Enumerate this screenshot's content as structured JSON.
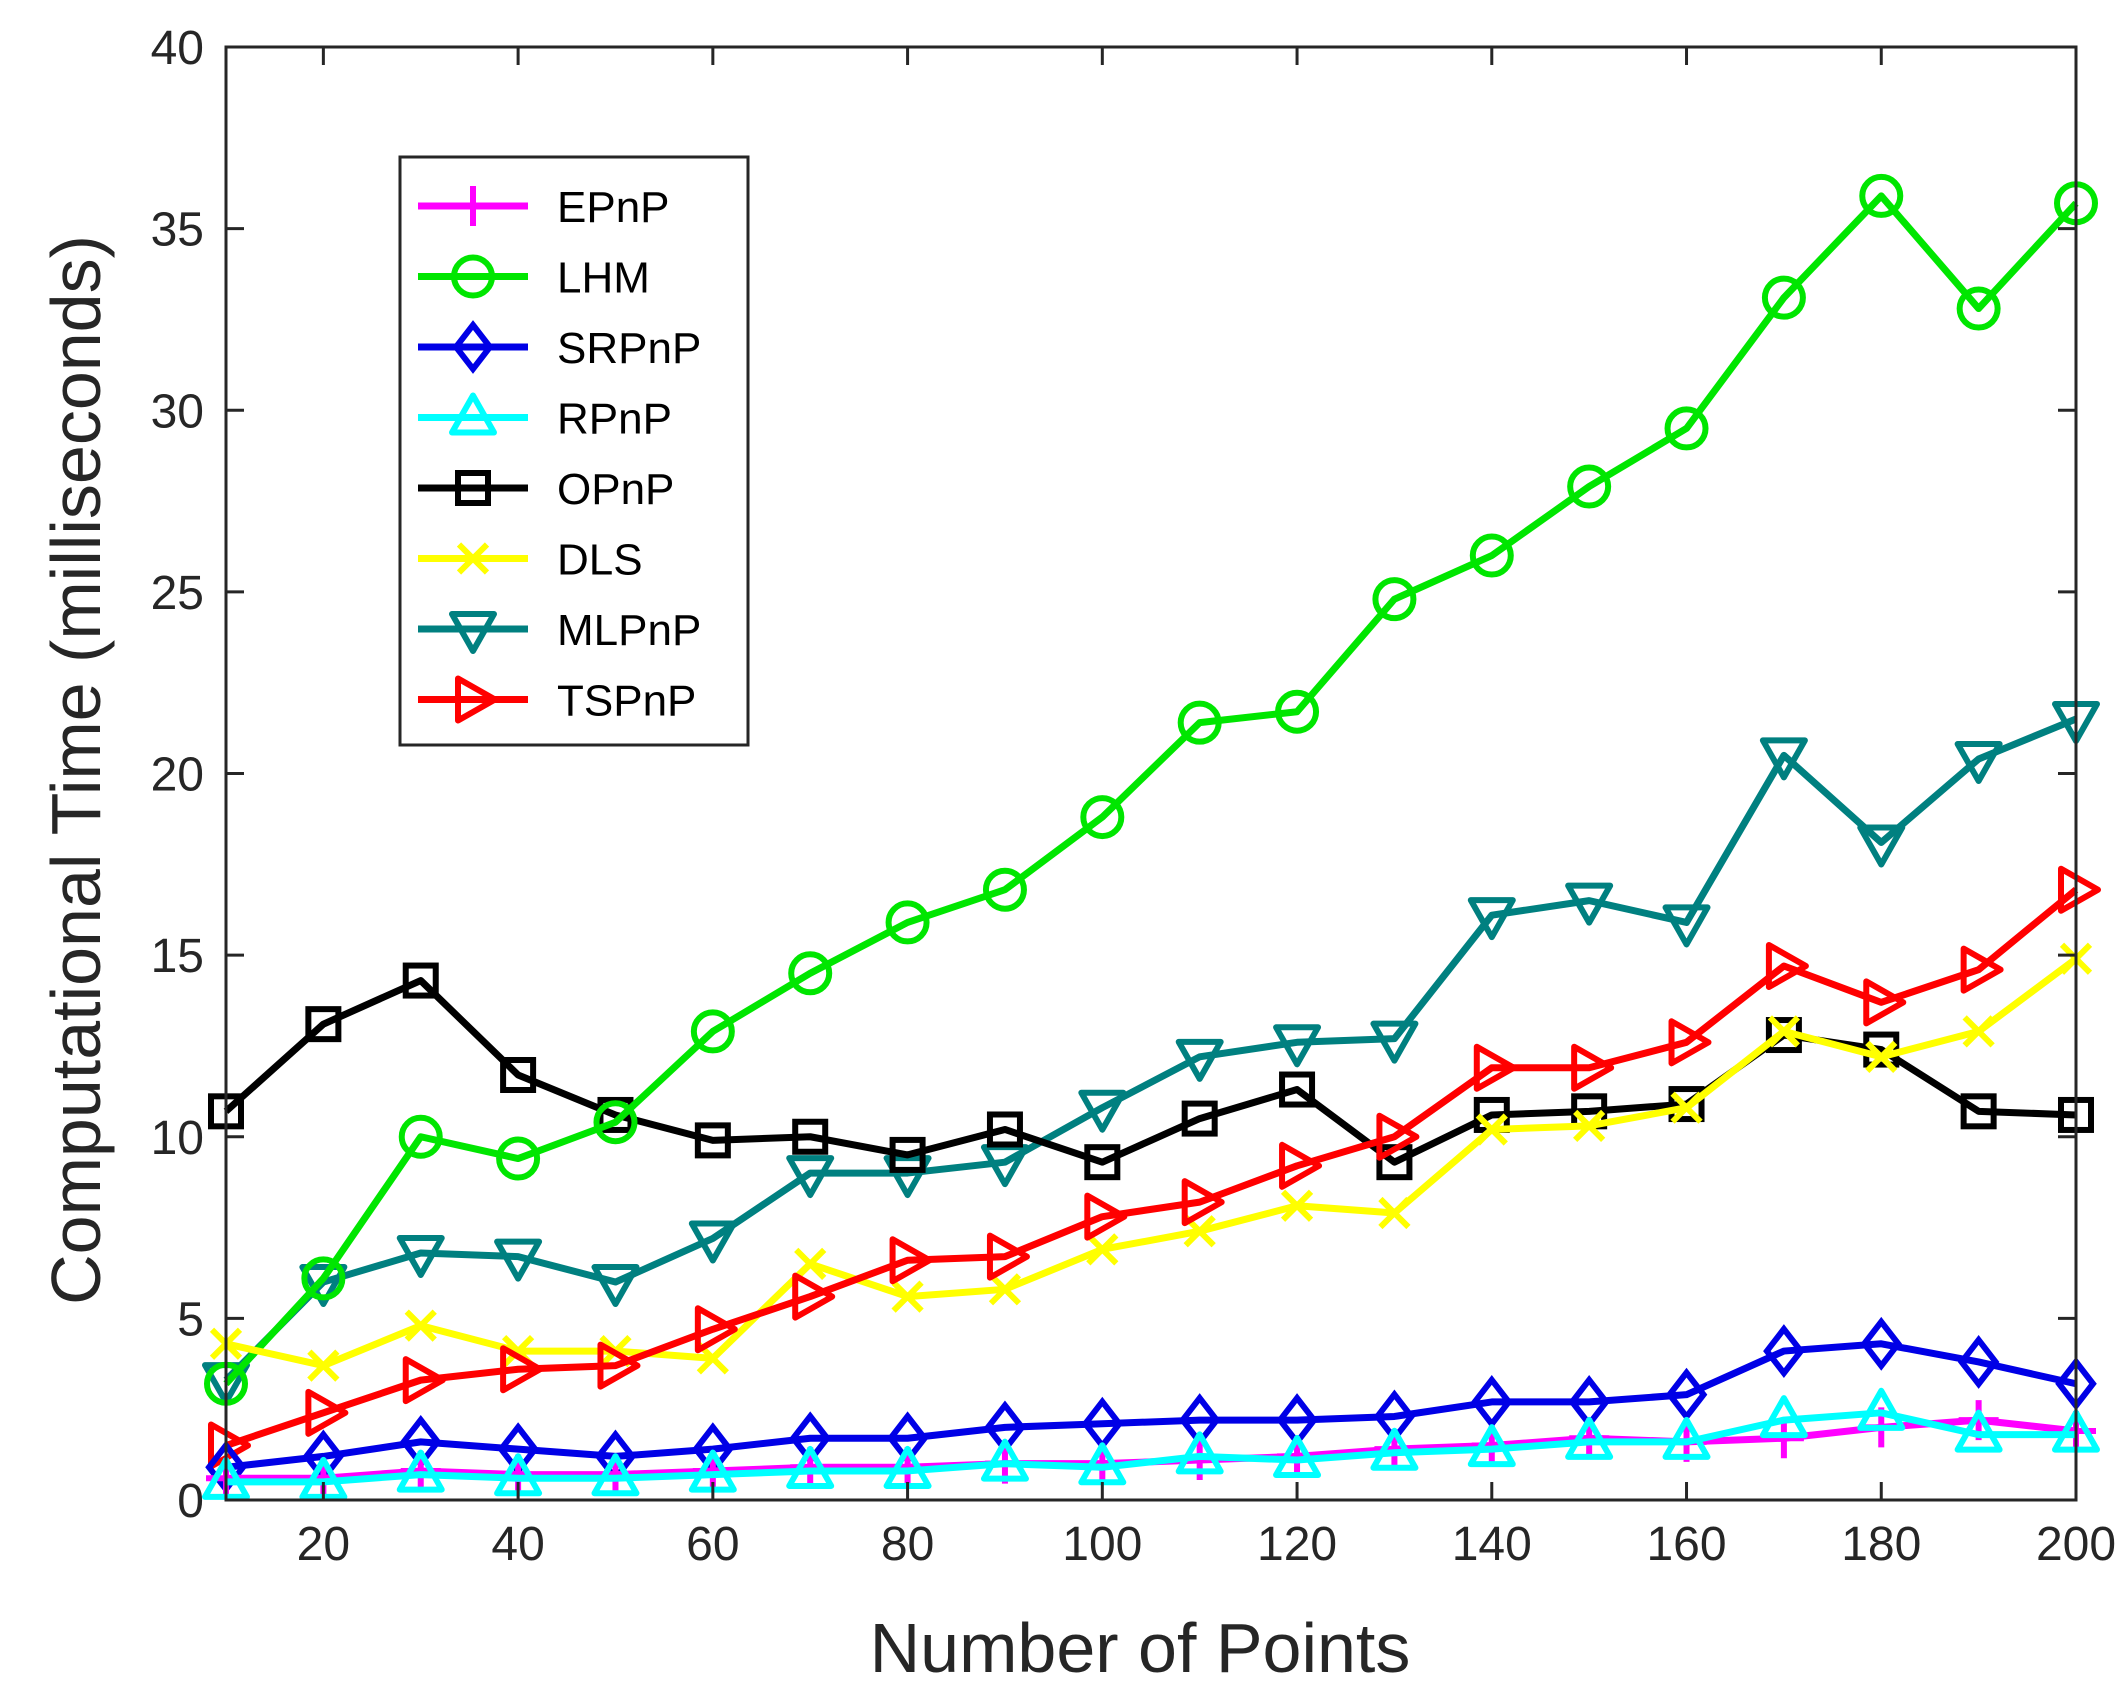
{
  "chart_data": {
    "type": "line",
    "title": "",
    "xlabel": "Number of Points",
    "ylabel": "Computational Time (milliseconds)",
    "xlim": [
      10,
      200
    ],
    "ylim": [
      0,
      40
    ],
    "xticks": [
      20,
      40,
      60,
      80,
      100,
      120,
      140,
      160,
      180,
      200
    ],
    "yticks": [
      0,
      5,
      10,
      15,
      20,
      25,
      30,
      35,
      40
    ],
    "grid": false,
    "legend_position": "upper-left",
    "x": [
      10,
      20,
      30,
      40,
      50,
      60,
      70,
      80,
      90,
      100,
      110,
      120,
      130,
      140,
      150,
      160,
      170,
      180,
      190,
      200
    ],
    "series": [
      {
        "name": "EPnP",
        "color": "#ff00ff",
        "marker": "plus",
        "values": [
          0.6,
          0.6,
          0.8,
          0.7,
          0.7,
          0.8,
          0.9,
          0.9,
          1.0,
          1.0,
          1.1,
          1.2,
          1.4,
          1.5,
          1.7,
          1.6,
          1.7,
          2.0,
          2.2,
          1.9
        ]
      },
      {
        "name": "LHM",
        "color": "#00e600",
        "marker": "circle",
        "values": [
          3.2,
          6.1,
          10.0,
          9.4,
          10.4,
          12.9,
          14.5,
          15.9,
          16.8,
          18.8,
          21.4,
          21.7,
          24.8,
          26.0,
          27.9,
          29.5,
          33.1,
          35.9,
          32.8,
          35.7
        ]
      },
      {
        "name": "SRPnP",
        "color": "#0000e6",
        "marker": "diamond",
        "values": [
          0.9,
          1.2,
          1.6,
          1.4,
          1.2,
          1.4,
          1.7,
          1.7,
          2.0,
          2.1,
          2.2,
          2.2,
          2.3,
          2.7,
          2.7,
          2.9,
          4.1,
          4.3,
          3.8,
          3.2
        ]
      },
      {
        "name": "RPnP",
        "color": "#00ffff",
        "marker": "triangle-up",
        "values": [
          0.5,
          0.5,
          0.7,
          0.6,
          0.6,
          0.7,
          0.8,
          0.8,
          1.0,
          0.9,
          1.2,
          1.1,
          1.3,
          1.4,
          1.6,
          1.6,
          2.2,
          2.4,
          1.8,
          1.8
        ]
      },
      {
        "name": "OPnP",
        "color": "#000000",
        "marker": "square",
        "values": [
          10.7,
          13.1,
          14.3,
          11.7,
          10.6,
          9.9,
          10.0,
          9.5,
          10.2,
          9.3,
          10.5,
          11.3,
          9.3,
          10.6,
          10.7,
          10.9,
          12.8,
          12.4,
          10.7,
          10.6
        ]
      },
      {
        "name": "DLS",
        "color": "#ffff00",
        "marker": "x",
        "values": [
          4.3,
          3.7,
          4.8,
          4.1,
          4.1,
          3.9,
          6.5,
          5.6,
          5.8,
          6.9,
          7.4,
          8.1,
          7.9,
          10.2,
          10.3,
          10.8,
          12.9,
          12.2,
          12.9,
          14.9
        ]
      },
      {
        "name": "MLPnP",
        "color": "#008080",
        "marker": "triangle-down",
        "values": [
          3.3,
          6.0,
          6.8,
          6.7,
          6.0,
          7.2,
          9.0,
          9.0,
          9.3,
          10.8,
          12.2,
          12.6,
          12.7,
          16.1,
          16.5,
          15.9,
          20.5,
          18.1,
          20.4,
          21.5
        ]
      },
      {
        "name": "TSPnP",
        "color": "#ff0000",
        "marker": "triangle-right",
        "values": [
          1.5,
          2.4,
          3.3,
          3.6,
          3.7,
          4.7,
          5.6,
          6.6,
          6.7,
          7.8,
          8.2,
          9.2,
          10.0,
          11.9,
          11.9,
          12.6,
          14.7,
          13.7,
          14.6,
          16.8
        ]
      }
    ]
  }
}
